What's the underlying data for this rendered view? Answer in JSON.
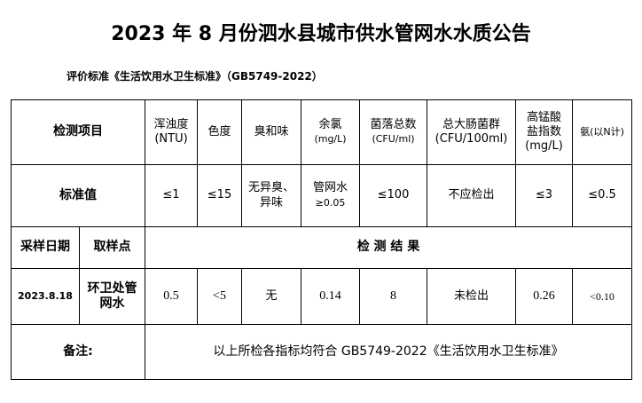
{
  "title": "2023 年 8 月份泗水县城市供水管网水水质公告",
  "standard": "评价标准《生活饮用水卫生标准》（GB5749-2022）",
  "header": {
    "item": "检测项目",
    "cols": [
      {
        "name": "浑浊度",
        "unit": "(NTU)"
      },
      {
        "name": "色度",
        "unit": ""
      },
      {
        "name": "臭和味",
        "unit": ""
      },
      {
        "name": "余氯",
        "unit": "(mg/L)"
      },
      {
        "name": "菌落总数",
        "unit": "(CFU/ml)"
      },
      {
        "name": "总大肠菌群",
        "unit": "(CFU/100ml)"
      },
      {
        "name": "高锰酸盐指数",
        "unit": "(mg/L)"
      },
      {
        "name": "氨(以N计)",
        "unit": ""
      }
    ]
  },
  "standard_row": {
    "label": "标准值",
    "values": [
      "≤1",
      "≤15",
      "无异臭、异味",
      "管网水",
      "≤100",
      "不应检出",
      "≤3",
      "≤0.5"
    ],
    "chlorine_sub": "≥0.05"
  },
  "results_header": {
    "date": "采样日期",
    "point": "取样点",
    "results": "检 测 结 果"
  },
  "result_row": {
    "date": "2023.8.18",
    "point": "环卫处管网水",
    "values": [
      "0.5",
      "<5",
      "无",
      "0.14",
      "8",
      "未检出",
      "0.26",
      "<0.10"
    ]
  },
  "remark": {
    "label": "备注:",
    "text": "以上所检各指标均符合 GB5749-2022《生活饮用水卫生标准》"
  }
}
